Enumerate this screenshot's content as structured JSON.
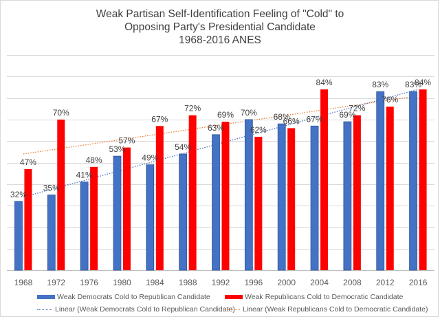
{
  "chart_data": {
    "type": "bar",
    "title": "Weak Partisan Self-Identification Feeling of \"Cold\" to Opposing Party's Presidential Candidate 1968-2016 ANES",
    "title_lines": [
      "Weak Partisan Self-Identification Feeling of \"Cold\" to",
      "Opposing Party's Presidential Candidate",
      "1968-2016 ANES"
    ],
    "xlabel": "",
    "ylabel": "",
    "categories": [
      "1968",
      "1972",
      "1976",
      "1980",
      "1984",
      "1988",
      "1992",
      "1996",
      "2000",
      "2004",
      "2008",
      "2012",
      "2016"
    ],
    "ylim": [
      0,
      100
    ],
    "y_unit": "%",
    "y_axis_labels_shown": false,
    "grid": true,
    "gridline_step": 10,
    "legend_position": "bottom",
    "series": [
      {
        "name": "Weak Democrats Cold to Republican Candidate",
        "color": "#4472C4",
        "values": [
          32,
          35,
          41,
          53,
          49,
          54,
          63,
          70,
          68,
          67,
          69,
          83,
          83
        ],
        "labels": [
          "32%",
          "35%",
          "41%",
          "53%",
          "49%",
          "54%",
          "63%",
          "70%",
          "68%",
          "67%",
          "69%",
          "83%",
          "83%"
        ]
      },
      {
        "name": "Weak Republicans Cold to Democratic Candidate",
        "color": "#FF0000",
        "values": [
          47,
          70,
          48,
          57,
          67,
          72,
          69,
          62,
          66,
          84,
          72,
          76,
          84
        ],
        "labels": [
          "47%",
          "70%",
          "48%",
          "57%",
          "67%",
          "72%",
          "69%",
          "62%",
          "66%",
          "84%",
          "72%",
          "76%",
          "84%"
        ]
      }
    ],
    "trendlines": [
      {
        "name": "Linear (Weak Democrats Cold to Republican Candidate)",
        "color": "#4472C4",
        "style": "dotted",
        "start": {
          "x": "1968",
          "y": 34
        },
        "end": {
          "x": "2016",
          "y": 84
        }
      },
      {
        "name": "Linear (Weak Republicans Cold to Democratic Candidate)",
        "color": "#ED7D31",
        "style": "dotted",
        "start": {
          "x": "1968",
          "y": 54
        },
        "end": {
          "x": "2016",
          "y": 81
        }
      }
    ]
  }
}
